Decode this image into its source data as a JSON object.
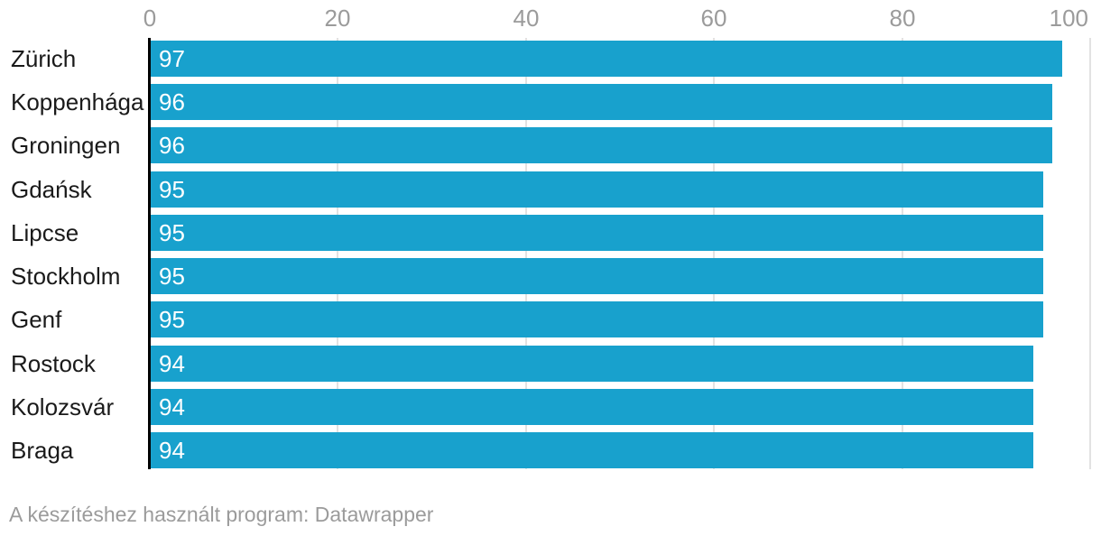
{
  "chart_data": {
    "type": "bar",
    "orientation": "horizontal",
    "categories": [
      "Zürich",
      "Koppenhága",
      "Groningen",
      "Gdańsk",
      "Lipcse",
      "Stockholm",
      "Genf",
      "Rostock",
      "Kolozsvár",
      "Braga"
    ],
    "values": [
      97,
      96,
      96,
      95,
      95,
      95,
      95,
      94,
      94,
      94
    ],
    "xlim": [
      0,
      100
    ],
    "xticks": [
      0,
      20,
      40,
      60,
      80,
      100
    ],
    "grid": true,
    "legend": "none",
    "value_labels_position": "inside-start",
    "footer": "A készítéshez használt program: Datawrapper",
    "colors": {
      "bar": "#18a1cd",
      "value_label": "#ffffff",
      "category_label": "#1a1a1a",
      "tick_label": "#9b9b9b",
      "gridline": "#e2e2e2",
      "axis_line": "#000000",
      "footer": "#9b9b9b",
      "background": "#ffffff"
    }
  }
}
